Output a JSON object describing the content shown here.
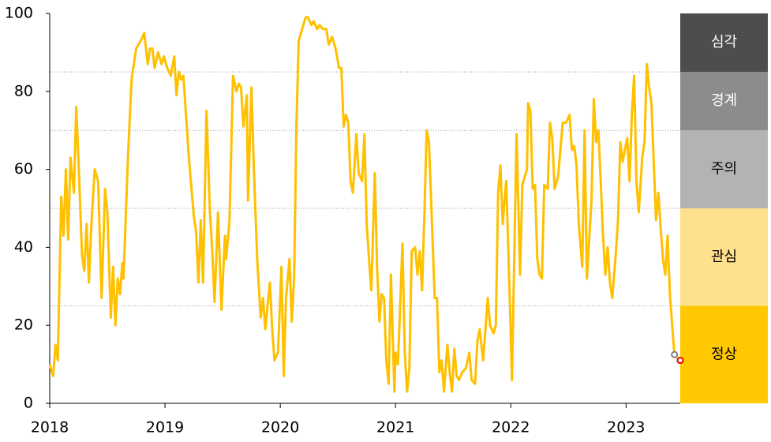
{
  "chart_data": {
    "type": "line",
    "x": [
      2018.0,
      2018.03,
      2018.05,
      2018.07,
      2018.1,
      2018.12,
      2018.14,
      2018.16,
      2018.18,
      2018.21,
      2018.23,
      2018.25,
      2018.28,
      2018.3,
      2018.32,
      2018.34,
      2018.36,
      2018.39,
      2018.42,
      2018.45,
      2018.48,
      2018.5,
      2018.53,
      2018.55,
      2018.57,
      2018.59,
      2018.61,
      2018.63,
      2018.64,
      2018.68,
      2018.71,
      2018.75,
      2018.79,
      2018.82,
      2018.85,
      2018.87,
      2018.89,
      2018.91,
      2018.94,
      2018.97,
      2018.99,
      2019.02,
      2019.05,
      2019.08,
      2019.1,
      2019.12,
      2019.14,
      2019.16,
      2019.18,
      2019.21,
      2019.25,
      2019.27,
      2019.29,
      2019.31,
      2019.33,
      2019.36,
      2019.39,
      2019.41,
      2019.43,
      2019.46,
      2019.49,
      2019.52,
      2019.53,
      2019.56,
      2019.59,
      2019.62,
      2019.64,
      2019.66,
      2019.68,
      2019.71,
      2019.72,
      2019.75,
      2019.77,
      2019.8,
      2019.83,
      2019.85,
      2019.87,
      2019.89,
      2019.91,
      2019.93,
      2019.95,
      2019.98,
      2020.01,
      2020.03,
      2020.05,
      2020.08,
      2020.1,
      2020.12,
      2020.14,
      2020.16,
      2020.19,
      2020.22,
      2020.24,
      2020.27,
      2020.29,
      2020.32,
      2020.34,
      2020.37,
      2020.4,
      2020.42,
      2020.45,
      2020.48,
      2020.51,
      2020.53,
      2020.55,
      2020.57,
      2020.59,
      2020.61,
      2020.63,
      2020.66,
      2020.68,
      2020.71,
      2020.73,
      2020.75,
      2020.77,
      2020.79,
      2020.82,
      2020.84,
      2020.86,
      2020.88,
      2020.9,
      2020.92,
      2020.94,
      2020.96,
      2020.99,
      2021.0,
      2021.02,
      2021.03,
      2021.06,
      2021.08,
      2021.1,
      2021.12,
      2021.14,
      2021.17,
      2021.19,
      2021.21,
      2021.23,
      2021.25,
      2021.27,
      2021.29,
      2021.32,
      2021.34,
      2021.36,
      2021.38,
      2021.4,
      2021.42,
      2021.45,
      2021.47,
      2021.49,
      2021.51,
      2021.53,
      2021.55,
      2021.58,
      2021.61,
      2021.64,
      2021.66,
      2021.69,
      2021.71,
      2021.73,
      2021.76,
      2021.8,
      2021.82,
      2021.85,
      2021.87,
      2021.89,
      2021.91,
      2021.93,
      2021.96,
      2021.99,
      2022.01,
      2022.05,
      2022.08,
      2022.1,
      2022.14,
      2022.15,
      2022.17,
      2022.19,
      2022.21,
      2022.23,
      2022.25,
      2022.27,
      2022.29,
      2022.32,
      2022.34,
      2022.36,
      2022.38,
      2022.41,
      2022.45,
      2022.48,
      2022.51,
      2022.53,
      2022.55,
      2022.57,
      2022.59,
      2022.62,
      2022.64,
      2022.66,
      2022.7,
      2022.72,
      2022.74,
      2022.76,
      2022.78,
      2022.8,
      2022.82,
      2022.84,
      2022.86,
      2022.88,
      2022.91,
      2022.93,
      2022.95,
      2022.97,
      2023.01,
      2023.03,
      2023.05,
      2023.07,
      2023.09,
      2023.11,
      2023.14,
      2023.16,
      2023.18,
      2023.2,
      2023.22,
      2023.24,
      2023.26,
      2023.28,
      2023.3,
      2023.32,
      2023.34,
      2023.36,
      2023.38,
      2023.41,
      2023.42,
      2023.47
    ],
    "values": [
      10,
      7,
      15,
      11,
      53,
      43,
      60,
      42,
      63,
      54,
      76,
      62,
      38,
      34,
      46,
      31,
      45,
      60,
      57,
      27,
      55,
      49,
      22,
      35,
      20,
      32,
      28,
      36,
      32,
      64,
      83,
      91,
      93,
      95,
      87,
      91,
      91,
      86,
      90,
      87,
      89,
      86,
      84,
      89,
      79,
      85,
      83,
      84,
      75,
      62,
      48,
      44,
      31,
      47,
      31,
      75,
      49,
      39,
      26,
      49,
      24,
      43,
      37,
      47,
      84,
      80,
      82,
      81,
      71,
      79,
      52,
      81,
      61,
      37,
      22,
      27,
      19,
      25,
      31,
      19,
      11,
      13,
      35,
      7,
      27,
      37,
      21,
      32,
      71,
      93,
      96,
      99,
      99,
      97,
      98,
      96,
      97,
      96,
      96,
      92,
      94,
      91,
      86,
      86,
      71,
      74,
      72,
      57,
      54,
      69,
      59,
      57,
      69,
      46,
      37,
      29,
      59,
      35,
      21,
      28,
      27,
      11,
      5,
      33,
      3,
      13,
      10,
      17,
      41,
      13,
      3,
      9,
      39,
      40,
      33,
      39,
      29,
      48,
      70,
      67,
      43,
      27,
      27,
      8,
      11,
      3,
      15,
      8,
      3,
      14,
      7,
      6,
      8,
      9,
      13,
      6,
      5,
      16,
      19,
      11,
      27,
      20,
      18,
      20,
      54,
      61,
      46,
      57,
      28,
      6,
      69,
      33,
      56,
      60,
      77,
      75,
      55,
      56,
      37,
      33,
      32,
      56,
      55,
      72,
      68,
      55,
      58,
      72,
      72,
      74,
      65,
      66,
      61,
      46,
      35,
      70,
      32,
      52,
      78,
      67,
      70,
      57,
      43,
      33,
      40,
      31,
      27,
      38,
      47,
      67,
      62,
      68,
      57,
      74,
      84,
      57,
      49,
      63,
      67,
      87,
      81,
      77,
      62,
      47,
      54,
      45,
      37,
      33,
      43,
      28,
      16,
      12.5,
      11
    ],
    "color": "#ffc000",
    "highlight_last_colors": [
      "#808080",
      "#e60000"
    ],
    "xlim": [
      2018,
      2023.47
    ],
    "xticks": [
      2018,
      2019,
      2020,
      2021,
      2022,
      2023
    ],
    "ylim": [
      0,
      100
    ],
    "yticks": [
      0,
      20,
      40,
      60,
      80,
      100
    ],
    "bands": [
      {
        "label": "정상",
        "from": 0,
        "to": 25,
        "color": "#ffc800",
        "text_color": "#000000"
      },
      {
        "label": "관심",
        "from": 25,
        "to": 50,
        "color": "#ffe08c",
        "text_color": "#000000"
      },
      {
        "label": "주의",
        "from": 50,
        "to": 70,
        "color": "#b3b3b3",
        "text_color": "#000000"
      },
      {
        "label": "경계",
        "from": 70,
        "to": 85,
        "color": "#8c8c8c",
        "text_color": "#ffffff"
      },
      {
        "label": "심각",
        "from": 85,
        "to": 100,
        "color": "#4d4d4d",
        "text_color": "#ffffff"
      }
    ]
  }
}
